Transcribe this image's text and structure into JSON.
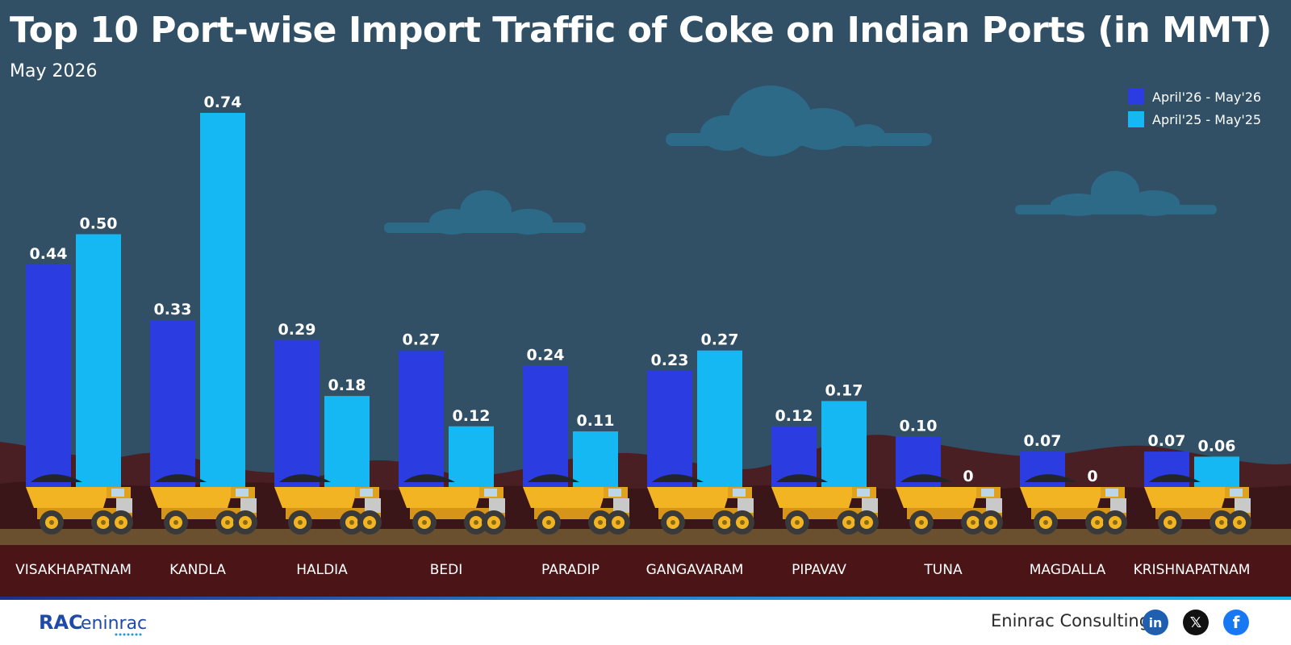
{
  "header": {
    "title": "Top 10 Port-wise Import Traffic of Coke on Indian Ports (in MMT)",
    "subtitle": "May 2026"
  },
  "chart_data": {
    "type": "bar",
    "title": "Top 10 Port-wise Import Traffic of Coke on Indian Ports (in MMT)",
    "subtitle": "May 2026",
    "xlabel": "",
    "ylabel": "",
    "ylim": [
      0,
      0.8
    ],
    "grid": false,
    "legend_position": "top-right",
    "categories": [
      "VISAKHAPATNAM",
      "KANDLA",
      "HALDIA",
      "BEDI",
      "PARADIP",
      "GANGAVARAM",
      "PIPAVAV",
      "TUNA",
      "MAGDALLA",
      "KRISHNAPATNAM"
    ],
    "series": [
      {
        "name": "April'26 - May'26",
        "color": "#2b3de0",
        "values": [
          0.44,
          0.33,
          0.29,
          0.27,
          0.24,
          0.23,
          0.12,
          0.1,
          0.07,
          0.07
        ],
        "labels": [
          "0.44",
          "0.33",
          "0.29",
          "0.27",
          "0.24",
          "0.23",
          "0.12",
          "0.10",
          "0.07",
          "0.07"
        ]
      },
      {
        "name": "April'25 - May'25",
        "color": "#16b8f3",
        "values": [
          0.5,
          0.74,
          0.18,
          0.12,
          0.11,
          0.27,
          0.17,
          0,
          0,
          0.06
        ],
        "labels": [
          "0.50",
          "0.74",
          "0.18",
          "0.12",
          "0.11",
          "0.27",
          "0.17",
          "0",
          "0",
          "0.06"
        ]
      }
    ]
  },
  "footer": {
    "brand": "Eninrac Consulting",
    "logo_text": "eninrac",
    "logo_prefix": "RAC",
    "social_icons": [
      "linkedin-icon",
      "x-icon",
      "facebook-icon"
    ],
    "linkedin_glyph": "in",
    "x_glyph": "𝕏",
    "facebook_glyph": "f"
  }
}
